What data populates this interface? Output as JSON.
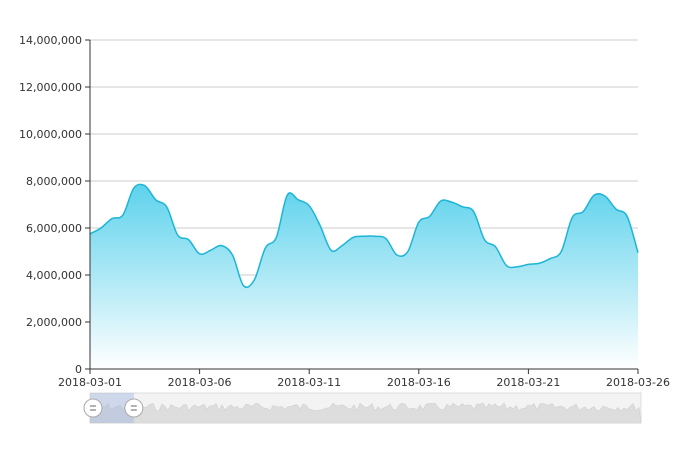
{
  "chart_data": {
    "type": "area",
    "title": "",
    "xlabel": "",
    "ylabel": "",
    "ylim": [
      0,
      14000000
    ],
    "y_ticks": [
      0,
      2000000,
      4000000,
      6000000,
      8000000,
      10000000,
      12000000,
      14000000
    ],
    "y_tick_labels": [
      "0",
      "2,000,000",
      "4,000,000",
      "6,000,000",
      "8,000,000",
      "10,000,000",
      "12,000,000",
      "14,000,000"
    ],
    "x_range": [
      "2018-03-01",
      "2018-03-26"
    ],
    "x_tick_labels": [
      "2018-03-01",
      "2018-03-06",
      "2018-03-11",
      "2018-03-16",
      "2018-03-21",
      "2018-03-26"
    ],
    "grid": "horizontal",
    "legend": "none",
    "series": [
      {
        "color": "#1cb5d6",
        "fill_gradient": [
          "#5dd2ec",
          "#ffffff"
        ],
        "x": [
          "2018-03-01",
          "2018-03-01",
          "2018-03-02",
          "2018-03-02",
          "2018-03-03",
          "2018-03-03",
          "2018-03-04",
          "2018-03-04",
          "2018-03-05",
          "2018-03-05",
          "2018-03-06",
          "2018-03-06",
          "2018-03-07",
          "2018-03-07",
          "2018-03-08",
          "2018-03-08",
          "2018-03-09",
          "2018-03-09",
          "2018-03-10",
          "2018-03-10",
          "2018-03-11",
          "2018-03-11",
          "2018-03-12",
          "2018-03-12",
          "2018-03-13",
          "2018-03-13",
          "2018-03-14",
          "2018-03-14",
          "2018-03-15",
          "2018-03-15",
          "2018-03-16",
          "2018-03-16",
          "2018-03-17",
          "2018-03-17",
          "2018-03-18",
          "2018-03-18",
          "2018-03-19",
          "2018-03-19",
          "2018-03-20",
          "2018-03-20",
          "2018-03-21",
          "2018-03-21",
          "2018-03-22",
          "2018-03-22",
          "2018-03-23",
          "2018-03-23",
          "2018-03-24",
          "2018-03-24",
          "2018-03-25",
          "2018-03-25",
          "2018-03-26"
        ],
        "values": [
          5750000,
          6000000,
          6400000,
          6550000,
          7700000,
          7800000,
          7200000,
          6900000,
          5700000,
          5500000,
          4900000,
          5050000,
          5250000,
          4850000,
          3550000,
          3800000,
          5150000,
          5600000,
          7400000,
          7200000,
          6950000,
          6100000,
          5050000,
          5250000,
          5600000,
          5650000,
          5650000,
          5550000,
          4850000,
          5000000,
          6250000,
          6500000,
          7150000,
          7100000,
          6900000,
          6700000,
          5500000,
          5200000,
          4400000,
          4350000,
          4450000,
          4500000,
          4700000,
          5000000,
          6450000,
          6700000,
          7400000,
          7350000,
          6800000,
          6500000,
          4950000
        ]
      }
    ],
    "data_zoom": {
      "start": "2018-03-01",
      "end": "2018-03-03"
    }
  }
}
